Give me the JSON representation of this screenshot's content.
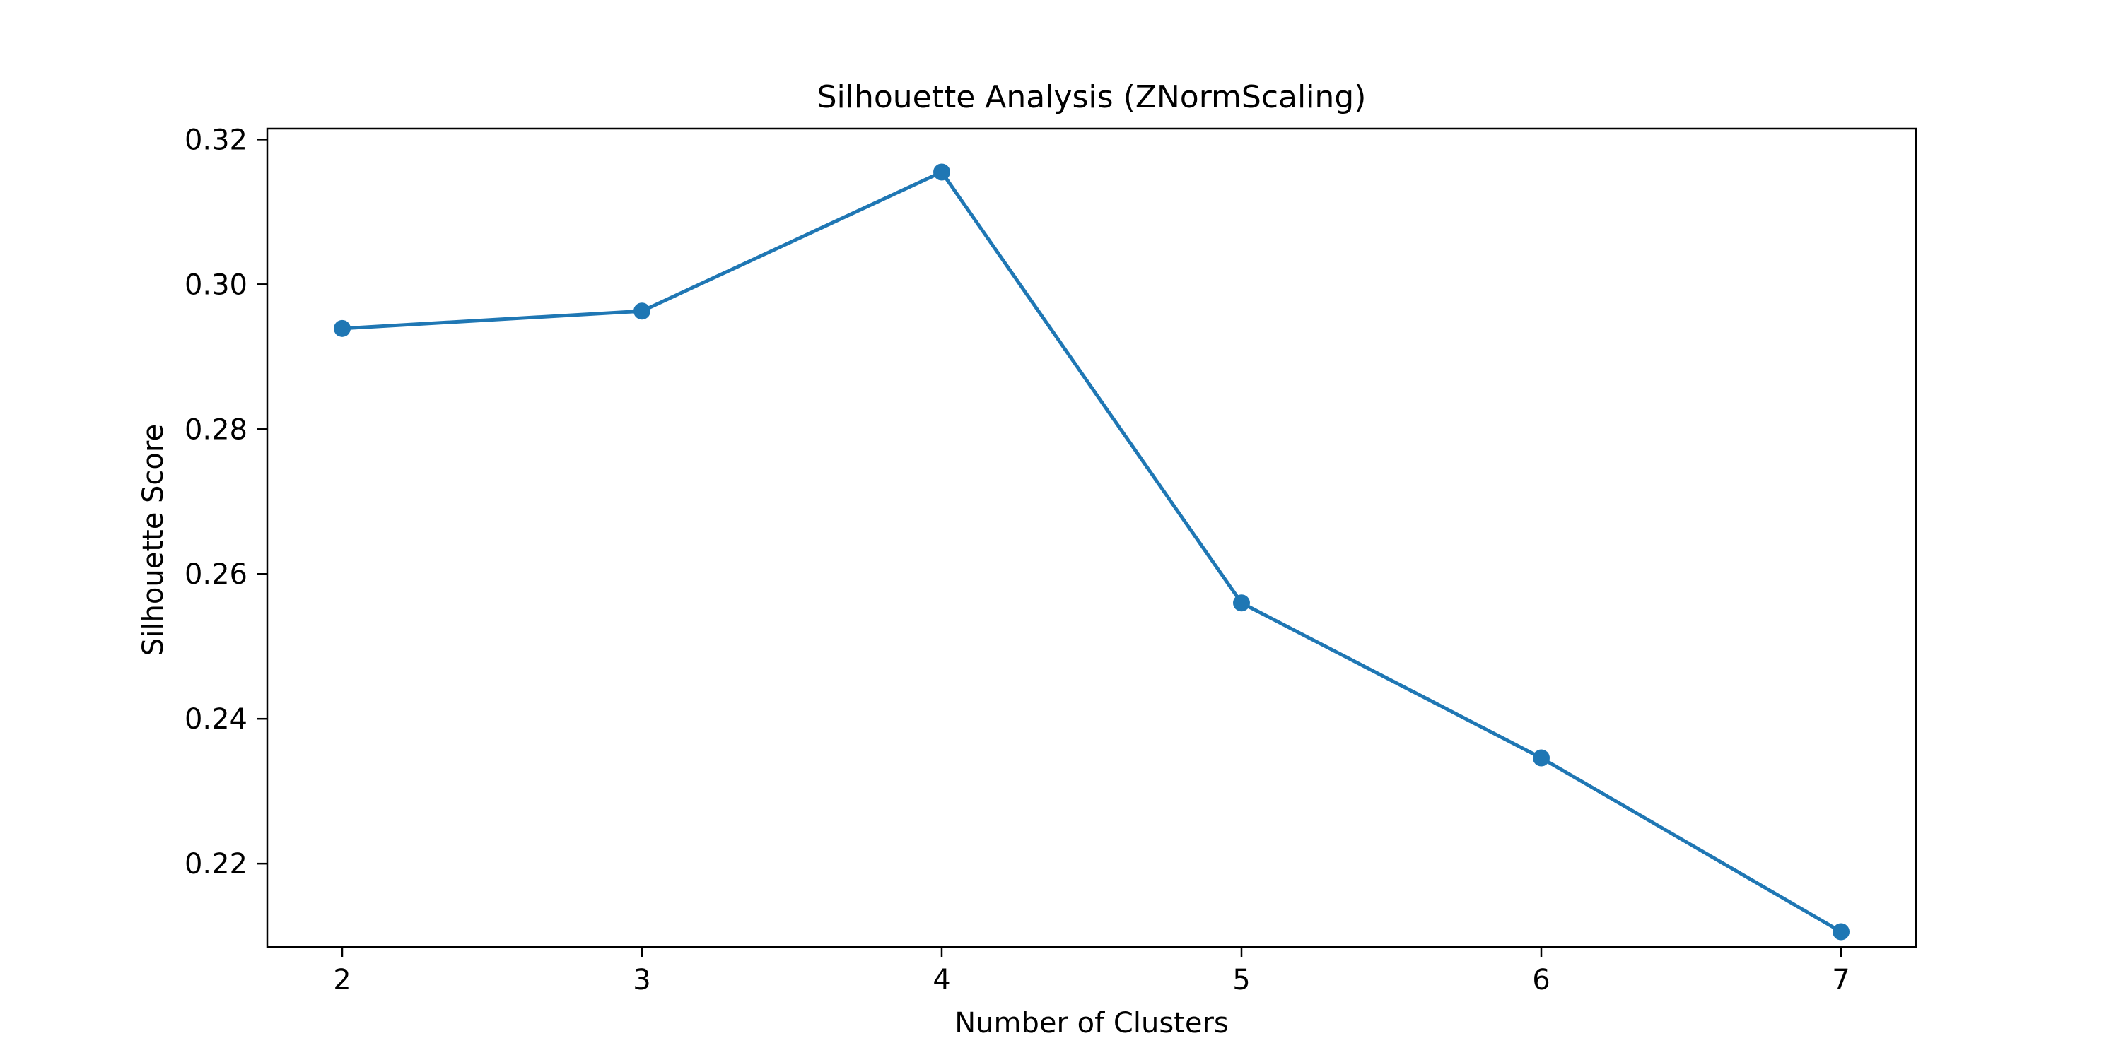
{
  "chart_data": {
    "type": "line",
    "title": "Silhouette Analysis (ZNormScaling)",
    "xlabel": "Number of Clusters",
    "ylabel": "Silhouette Score",
    "x": [
      2,
      3,
      4,
      5,
      6,
      7
    ],
    "series": [
      {
        "values": [
          0.2939,
          0.2963,
          0.3155,
          0.256,
          0.2346,
          0.2106
        ],
        "color": "#1f77b4",
        "marker": "circle"
      }
    ],
    "xlim": [
      1.75,
      7.25
    ],
    "ylim": [
      0.2085,
      0.3215
    ],
    "xticks": [
      2,
      3,
      4,
      5,
      6,
      7
    ],
    "xtick_labels": [
      "2",
      "3",
      "4",
      "5",
      "6",
      "7"
    ],
    "yticks": [
      0.22,
      0.24,
      0.26,
      0.28,
      0.3,
      0.32
    ],
    "ytick_labels": [
      "0.22",
      "0.24",
      "0.26",
      "0.28",
      "0.30",
      "0.32"
    ],
    "grid": false,
    "legend": false
  }
}
